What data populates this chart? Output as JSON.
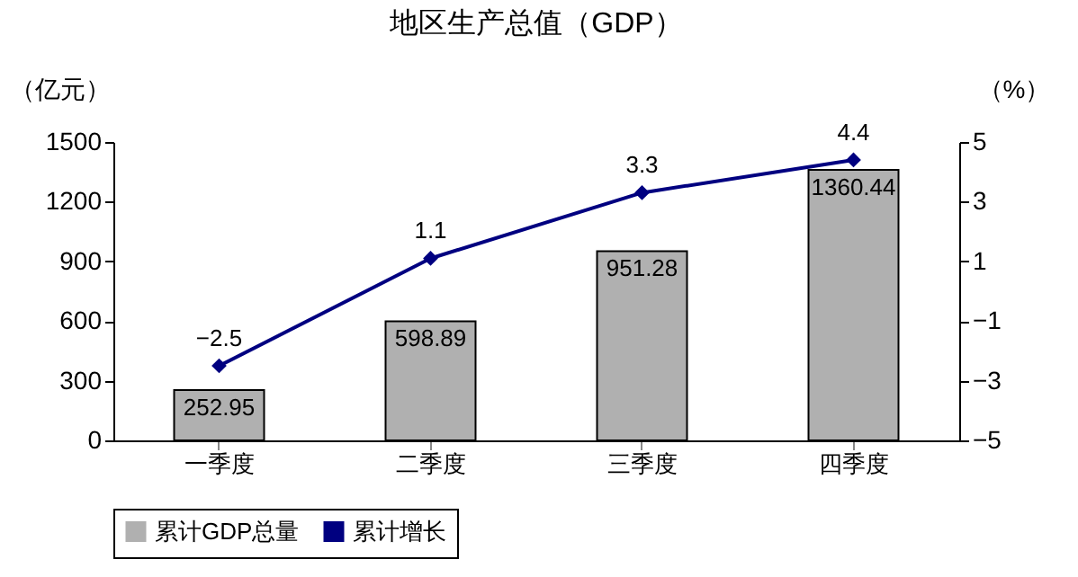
{
  "chart_data": {
    "type": "bar",
    "title": "地区生产总值（GDP）",
    "ylabel": "（亿元）",
    "y2label": "（%）",
    "categories": [
      "一季度",
      "二季度",
      "三季度",
      "四季度"
    ],
    "series": [
      {
        "name": "累计GDP总量",
        "color": "#b0b0b0",
        "values": [
          252.95,
          598.89,
          951.28,
          1360.44
        ]
      },
      {
        "name": "累计增长",
        "type": "line",
        "axis": "y2",
        "color": "#000080",
        "values": [
          -2.5,
          1.1,
          3.3,
          4.4
        ]
      }
    ],
    "ylim": [
      0,
      1500
    ],
    "yticks": [
      0,
      300,
      600,
      900,
      1200,
      1500
    ],
    "y2lim": [
      -5,
      5
    ],
    "y2ticks": [
      -5,
      -3,
      -1,
      1,
      3,
      5
    ],
    "marker": "diamond",
    "data_labels": true,
    "legend": "bottom",
    "grid": false
  }
}
